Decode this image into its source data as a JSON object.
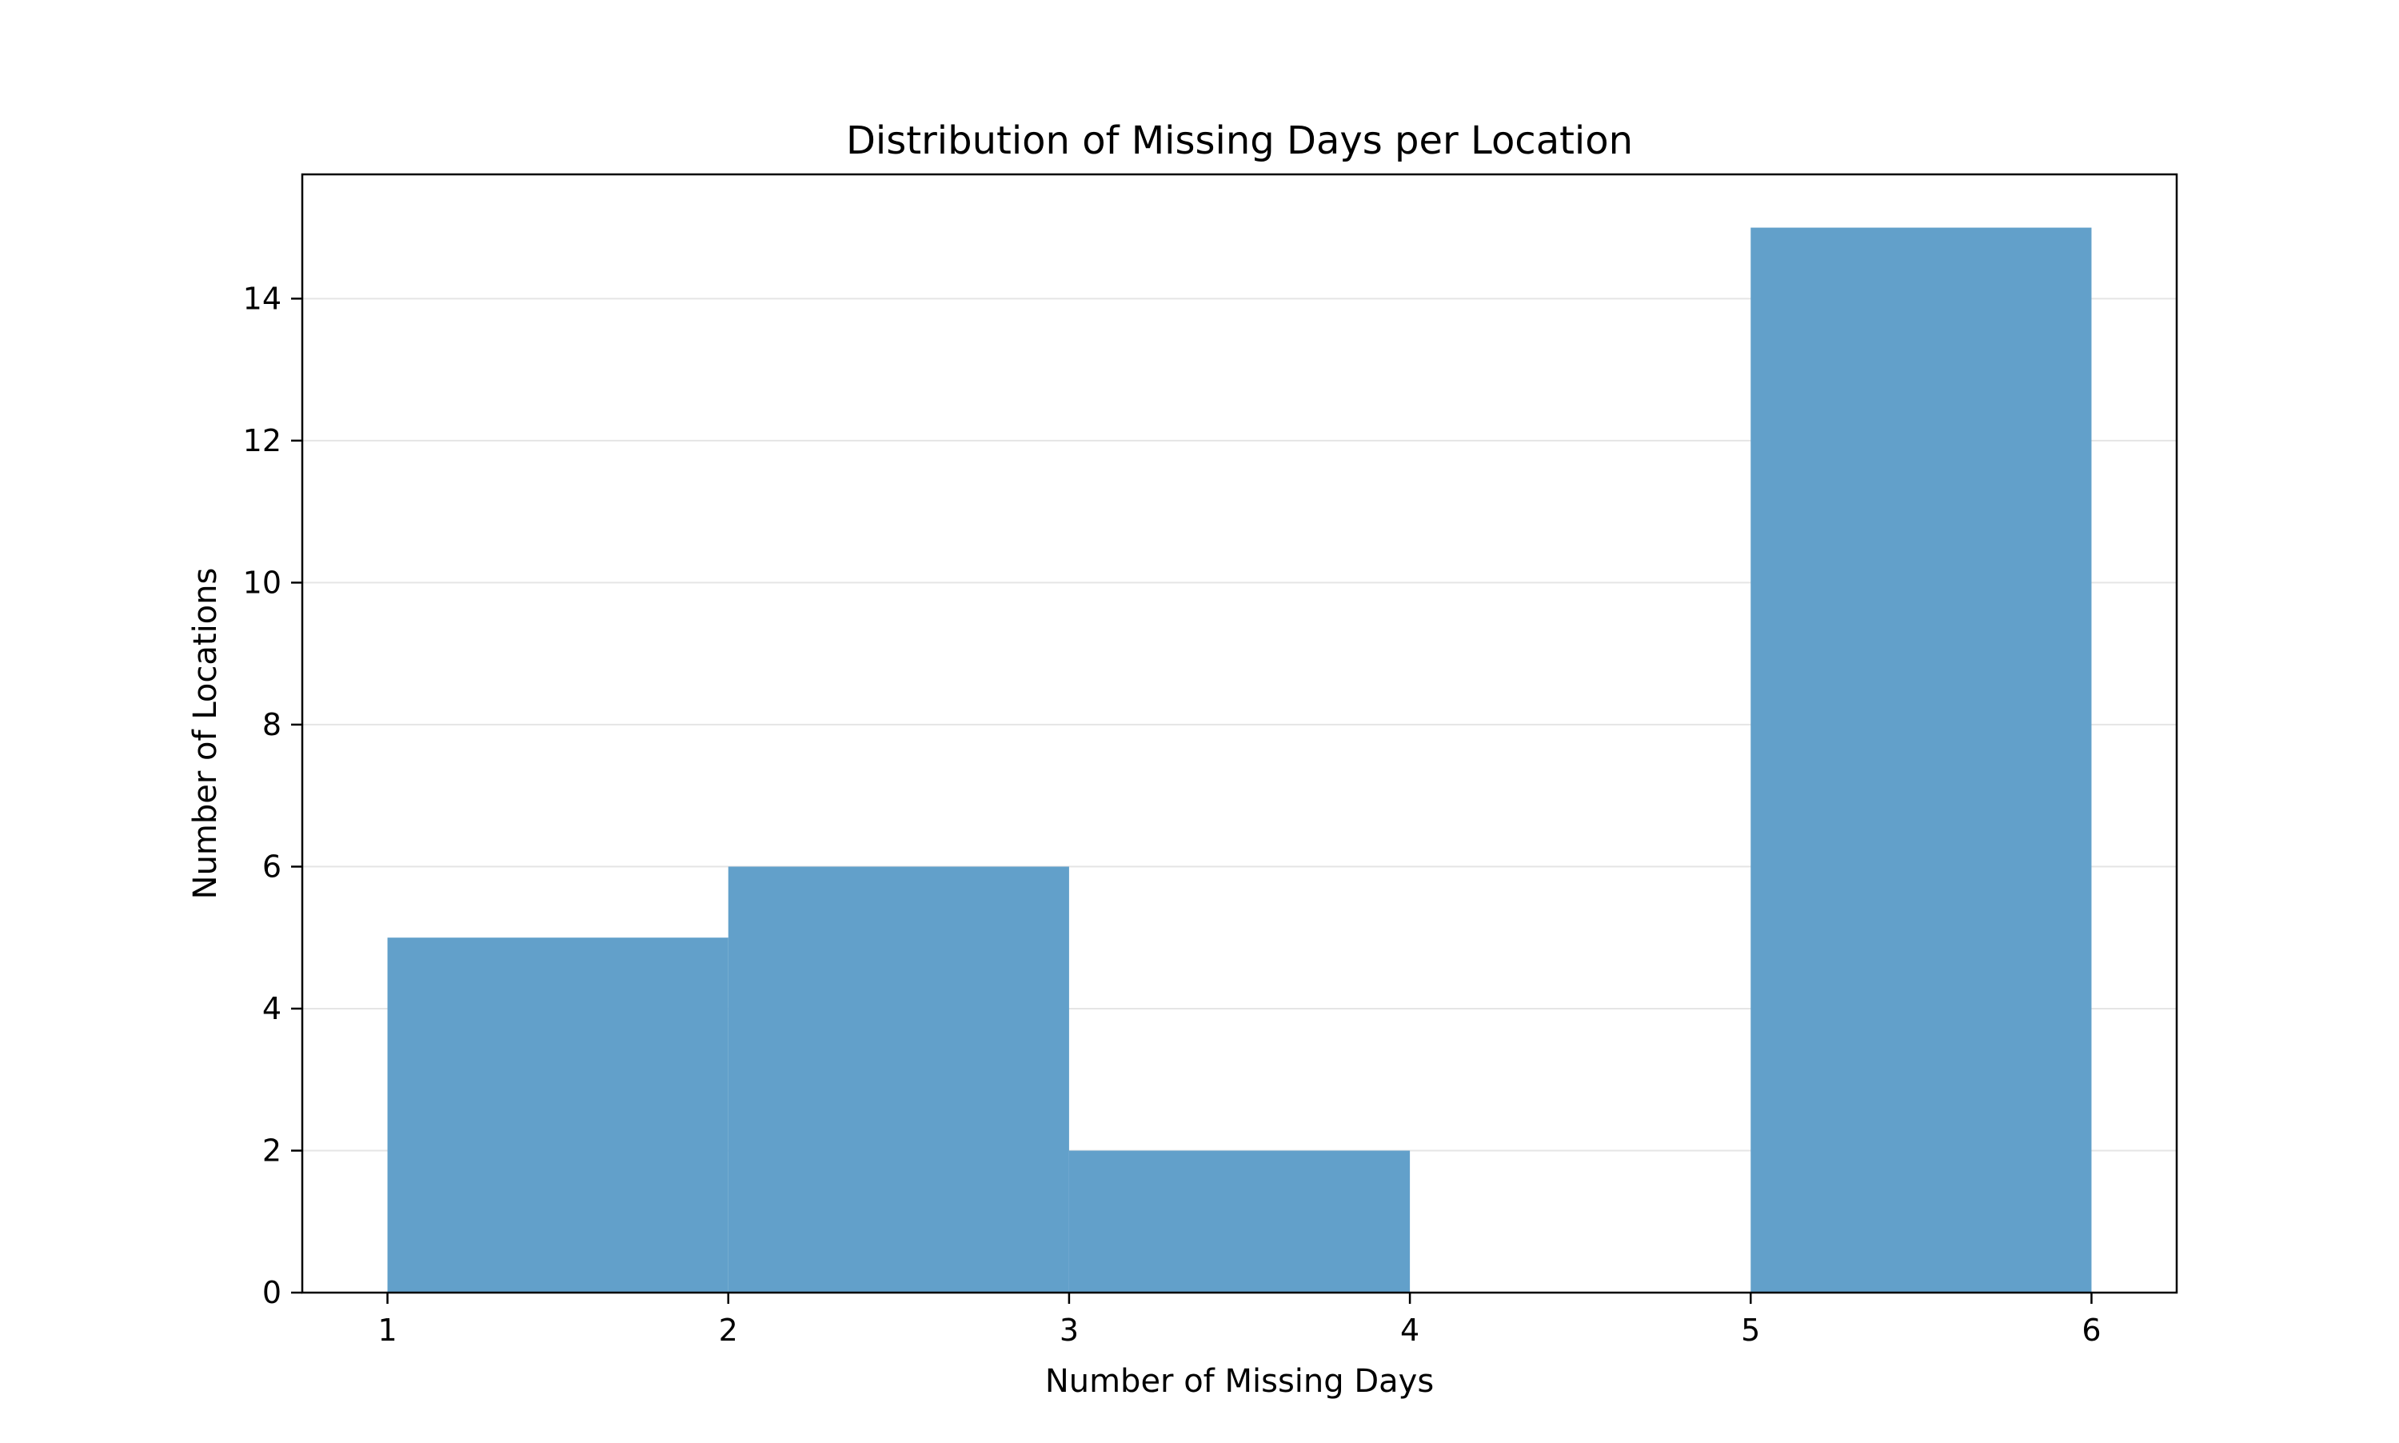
{
  "chart_data": {
    "type": "bar",
    "title": "Distribution of Missing Days per Location",
    "xlabel": "Number of Missing Days",
    "ylabel": "Number of Locations",
    "bin_edges": [
      1,
      2,
      3,
      4,
      5,
      6
    ],
    "values": [
      5,
      6,
      2,
      0,
      15
    ],
    "xlim": [
      0.75,
      6.25
    ],
    "ylim": [
      0,
      15.75
    ],
    "xticks": [
      1,
      2,
      3,
      4,
      5,
      6
    ],
    "yticks": [
      0,
      2,
      4,
      6,
      8,
      10,
      12,
      14
    ],
    "grid": "y",
    "bar_color": "#62a0ca",
    "grid_color": "#e5e5e5"
  }
}
